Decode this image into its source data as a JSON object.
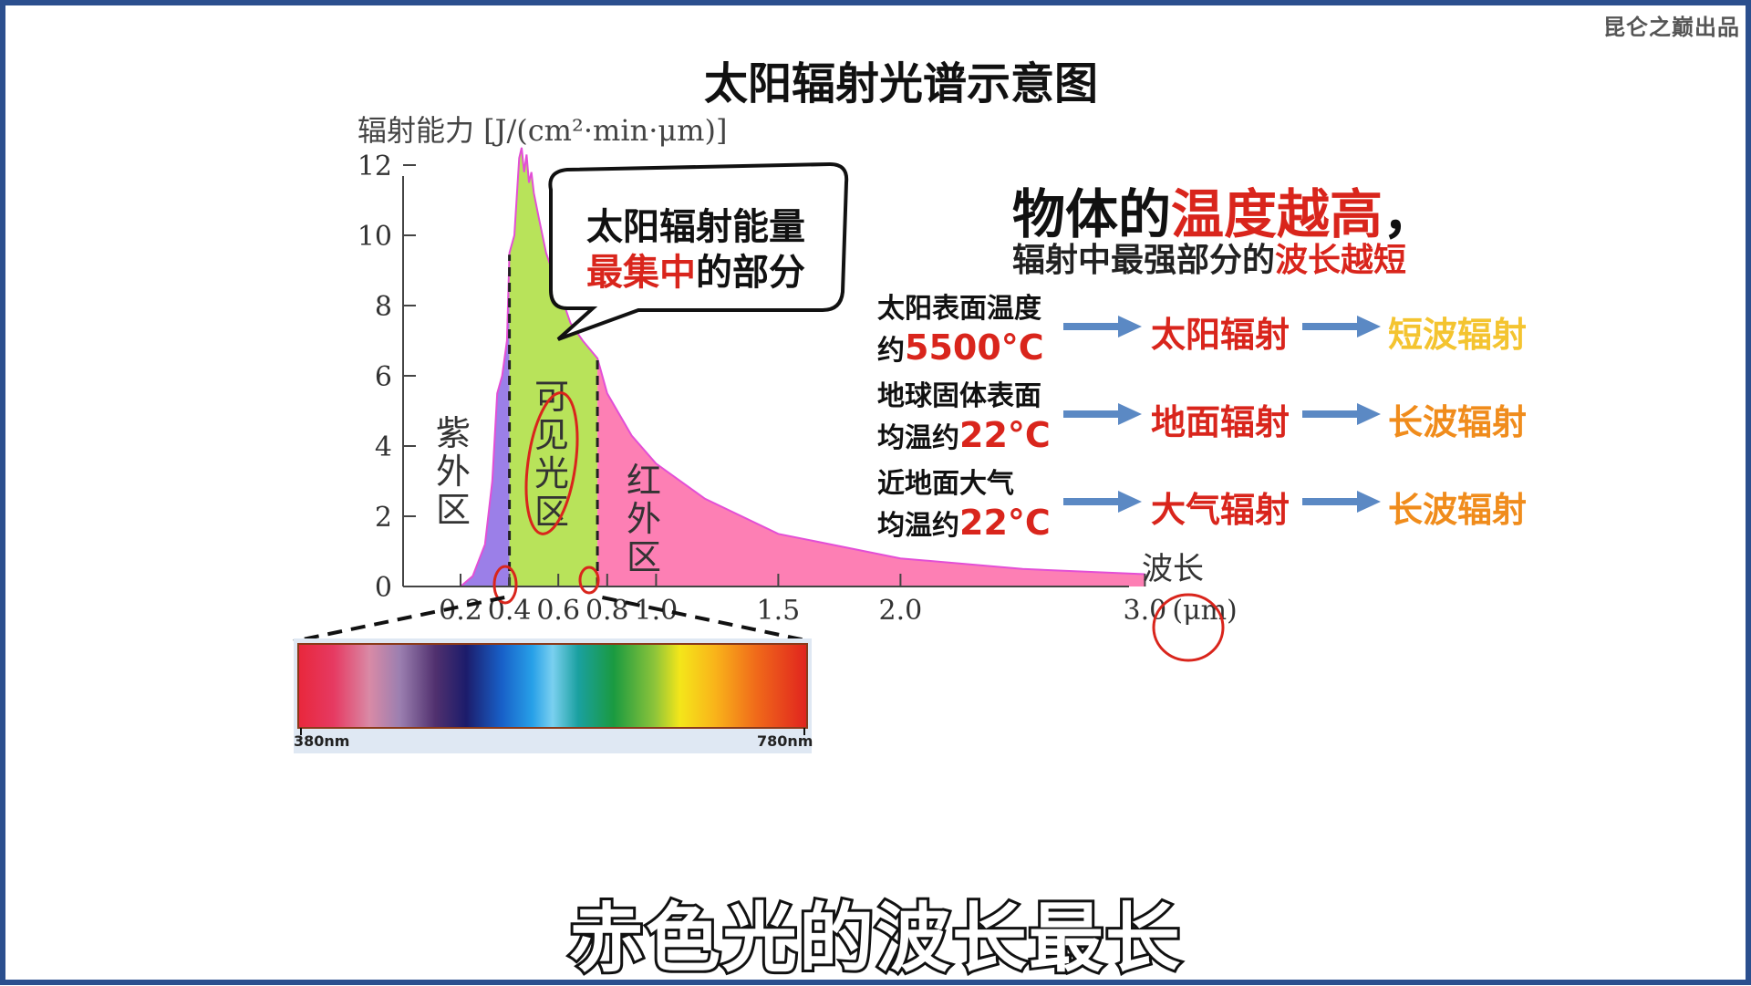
{
  "watermark": "昆仑之巅出品",
  "subtitle_caption": "赤色光的波长最长",
  "callout": {
    "line1": "太阳辐射能量",
    "line2_red": "最集中",
    "line2_rest": "的部分"
  },
  "headline": {
    "part1": "物体的",
    "part2_red": "温度越高",
    "part3": "，"
  },
  "subline": {
    "part1": "辐射中最强部分的",
    "part2_red": "波长越短"
  },
  "rows": [
    {
      "desc_line1": "太阳表面温度",
      "desc_prefix": "约",
      "temp": "5500°C",
      "kind": "太阳辐射",
      "wave": "短波辐射",
      "wave_color": "#f4c430"
    },
    {
      "desc_line1": "地球固体表面",
      "desc_prefix": "均温约",
      "temp": "22°C",
      "kind": "地面辐射",
      "wave": "长波辐射",
      "wave_color": "#f08c1c"
    },
    {
      "desc_line1": "近地面大气",
      "desc_prefix": "均温约",
      "temp": "22°C",
      "kind": "大气辐射",
      "wave": "长波辐射",
      "wave_color": "#f08c1c"
    }
  ],
  "spectrum_bar": {
    "left_label": "380nm",
    "right_label": "780nm"
  },
  "colors": {
    "uv": "#9b7fe8",
    "visible": "#b8e35a",
    "infrared": "#fd7fb4",
    "accent_red": "#d9251c",
    "arrow": "#5b89c4"
  },
  "chart_data": {
    "type": "area",
    "title": "太阳辐射光谱示意图",
    "ylabel": "辐射能力 [J/(cm²·min·μm)]",
    "xlabel": "波长",
    "x_unit": "(μm)",
    "ylim": [
      0,
      12
    ],
    "xlim": [
      0.2,
      3.0
    ],
    "yticks": [
      0,
      2,
      4,
      6,
      8,
      10,
      12
    ],
    "xticks": [
      {
        "value": 0.2,
        "label": "0.2"
      },
      {
        "value": 0.4,
        "label": "0.4"
      },
      {
        "value": 0.6,
        "label": "0.6"
      },
      {
        "value": 0.8,
        "label": "0.8"
      },
      {
        "value": 1.0,
        "label": "1.0"
      },
      {
        "value": 1.5,
        "label": "1.5"
      },
      {
        "value": 2.0,
        "label": "2.0"
      },
      {
        "value": 3.0,
        "label": "3.0"
      }
    ],
    "regions": [
      {
        "name": "紫外区",
        "from": 0.2,
        "to": 0.4
      },
      {
        "name": "可见光区",
        "from": 0.4,
        "to": 0.76
      },
      {
        "name": "红外区",
        "from": 0.76,
        "to": 3.0
      }
    ],
    "boundaries": [
      0.4,
      0.76
    ],
    "x": [
      0.2,
      0.25,
      0.3,
      0.33,
      0.35,
      0.37,
      0.39,
      0.4,
      0.42,
      0.44,
      0.45,
      0.46,
      0.47,
      0.48,
      0.49,
      0.5,
      0.52,
      0.55,
      0.6,
      0.65,
      0.7,
      0.76,
      0.8,
      0.9,
      1.0,
      1.2,
      1.5,
      2.0,
      2.5,
      3.0
    ],
    "y": [
      0,
      0.3,
      1.2,
      3.0,
      5.5,
      6.0,
      7.0,
      9.5,
      10.0,
      12.2,
      12.5,
      11.8,
      12.3,
      11.5,
      11.8,
      11.2,
      10.5,
      9.5,
      8.5,
      7.5,
      7.0,
      6.5,
      5.5,
      4.3,
      3.5,
      2.5,
      1.5,
      0.8,
      0.5,
      0.35
    ]
  }
}
